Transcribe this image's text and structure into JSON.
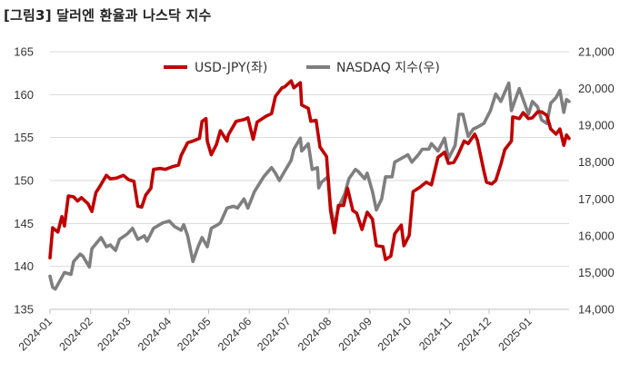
{
  "title": "[그림3]  달러엔 환율과 나스닥 지수",
  "colors": {
    "usdjpy": "#c00000",
    "nasdaq": "#7f7f7f",
    "grid": "#d9d9d9",
    "axis": "#bfbfbf"
  },
  "chart_data": {
    "type": "line",
    "title": "[그림3]  달러엔 환율과 나스닥 지수",
    "x_tick_labels": [
      "2024-01",
      "2024-02",
      "2024-03",
      "2024-04",
      "2024-05",
      "2024-06",
      "2024-07",
      "2024-08",
      "2024-09",
      "2024-10",
      "2024-11",
      "2024-12",
      "2025-01"
    ],
    "x_range": [
      "2024-01-01",
      "2025-01-31"
    ],
    "y_left": {
      "range": [
        135,
        165
      ],
      "ticks": [
        "135",
        "140",
        "145",
        "150",
        "155",
        "160",
        "165"
      ]
    },
    "y_right": {
      "range": [
        14000,
        21000
      ],
      "ticks": [
        "14,000",
        "15,000",
        "16,000",
        "17,000",
        "18,000",
        "19,000",
        "20,000",
        "21,000"
      ]
    },
    "legend": {
      "placement": "top-center",
      "entries": [
        "USD-JPY(좌)",
        "NASDAQ 지수(우)"
      ]
    },
    "grid": {
      "horizontal": true,
      "vertical": false
    },
    "series": [
      {
        "name": "USD-JPY(좌)",
        "axis": "left",
        "color": "#c00000",
        "points": [
          [
            "2024-01-01",
            141.0
          ],
          [
            "2024-01-03",
            144.5
          ],
          [
            "2024-01-07",
            144.0
          ],
          [
            "2024-01-10",
            145.8
          ],
          [
            "2024-01-12",
            144.7
          ],
          [
            "2024-01-15",
            148.2
          ],
          [
            "2024-01-19",
            148.1
          ],
          [
            "2024-01-22",
            147.6
          ],
          [
            "2024-01-25",
            148.0
          ],
          [
            "2024-01-30",
            147.3
          ],
          [
            "2024-02-02",
            146.4
          ],
          [
            "2024-02-05",
            148.6
          ],
          [
            "2024-02-08",
            149.3
          ],
          [
            "2024-02-13",
            150.6
          ],
          [
            "2024-02-16",
            150.2
          ],
          [
            "2024-02-21",
            150.3
          ],
          [
            "2024-02-26",
            150.6
          ],
          [
            "2024-03-01",
            150.1
          ],
          [
            "2024-03-05",
            149.9
          ],
          [
            "2024-03-08",
            147.0
          ],
          [
            "2024-03-11",
            146.9
          ],
          [
            "2024-03-14",
            148.3
          ],
          [
            "2024-03-18",
            149.1
          ],
          [
            "2024-03-20",
            151.3
          ],
          [
            "2024-03-25",
            151.4
          ],
          [
            "2024-03-29",
            151.3
          ],
          [
            "2024-04-03",
            151.6
          ],
          [
            "2024-04-08",
            151.8
          ],
          [
            "2024-04-10",
            152.9
          ],
          [
            "2024-04-15",
            154.4
          ],
          [
            "2024-04-19",
            154.6
          ],
          [
            "2024-04-24",
            154.9
          ],
          [
            "2024-04-26",
            156.9
          ],
          [
            "2024-04-29",
            157.2
          ],
          [
            "2024-04-30",
            154.6
          ],
          [
            "2024-05-03",
            153.0
          ],
          [
            "2024-05-07",
            154.2
          ],
          [
            "2024-05-10",
            155.8
          ],
          [
            "2024-05-15",
            154.6
          ],
          [
            "2024-05-16",
            155.3
          ],
          [
            "2024-05-22",
            156.9
          ],
          [
            "2024-05-28",
            157.1
          ],
          [
            "2024-05-31",
            157.3
          ],
          [
            "2024-06-04",
            154.8
          ],
          [
            "2024-06-07",
            156.8
          ],
          [
            "2024-06-11",
            157.2
          ],
          [
            "2024-06-14",
            157.5
          ],
          [
            "2024-06-18",
            157.8
          ],
          [
            "2024-06-21",
            159.8
          ],
          [
            "2024-06-26",
            160.8
          ],
          [
            "2024-06-28",
            160.9
          ],
          [
            "2024-07-03",
            161.6
          ],
          [
            "2024-07-05",
            160.8
          ],
          [
            "2024-07-10",
            161.4
          ],
          [
            "2024-07-11",
            158.8
          ],
          [
            "2024-07-16",
            158.4
          ],
          [
            "2024-07-18",
            156.9
          ],
          [
            "2024-07-22",
            157.0
          ],
          [
            "2024-07-25",
            153.9
          ],
          [
            "2024-07-30",
            152.8
          ],
          [
            "2024-08-02",
            146.5
          ],
          [
            "2024-08-05",
            143.9
          ],
          [
            "2024-08-08",
            147.1
          ],
          [
            "2024-08-12",
            147.1
          ],
          [
            "2024-08-15",
            149.1
          ],
          [
            "2024-08-19",
            146.5
          ],
          [
            "2024-08-22",
            146.2
          ],
          [
            "2024-08-26",
            144.3
          ],
          [
            "2024-08-30",
            146.3
          ],
          [
            "2024-09-03",
            145.5
          ],
          [
            "2024-09-06",
            142.4
          ],
          [
            "2024-09-11",
            142.3
          ],
          [
            "2024-09-13",
            140.8
          ],
          [
            "2024-09-17",
            141.2
          ],
          [
            "2024-09-20",
            143.8
          ],
          [
            "2024-09-25",
            144.8
          ],
          [
            "2024-09-27",
            142.4
          ],
          [
            "2024-10-01",
            143.6
          ],
          [
            "2024-10-04",
            148.7
          ],
          [
            "2024-10-09",
            149.2
          ],
          [
            "2024-10-14",
            149.8
          ],
          [
            "2024-10-18",
            149.5
          ],
          [
            "2024-10-23",
            152.7
          ],
          [
            "2024-10-28",
            153.3
          ],
          [
            "2024-10-31",
            152.0
          ],
          [
            "2024-11-04",
            152.1
          ],
          [
            "2024-11-07",
            152.9
          ],
          [
            "2024-11-12",
            154.6
          ],
          [
            "2024-11-15",
            154.3
          ],
          [
            "2024-11-20",
            155.4
          ],
          [
            "2024-11-22",
            154.7
          ],
          [
            "2024-11-27",
            151.1
          ],
          [
            "2024-11-29",
            149.8
          ],
          [
            "2024-12-03",
            149.6
          ],
          [
            "2024-12-06",
            150.0
          ],
          [
            "2024-12-10",
            151.9
          ],
          [
            "2024-12-13",
            153.6
          ],
          [
            "2024-12-18",
            154.6
          ],
          [
            "2024-12-19",
            157.4
          ],
          [
            "2024-12-24",
            157.2
          ],
          [
            "2024-12-27",
            157.9
          ],
          [
            "2024-12-31",
            157.2
          ],
          [
            "2025-01-03",
            157.3
          ],
          [
            "2025-01-07",
            158.0
          ],
          [
            "2025-01-10",
            158.0
          ],
          [
            "2025-01-14",
            157.6
          ],
          [
            "2025-01-17",
            156.0
          ],
          [
            "2025-01-21",
            155.4
          ],
          [
            "2025-01-24",
            156.0
          ],
          [
            "2025-01-27",
            154.1
          ],
          [
            "2025-01-29",
            155.3
          ],
          [
            "2025-01-31",
            154.9
          ]
        ]
      },
      {
        "name": "NASDAQ 지수(우)",
        "axis": "right",
        "color": "#7f7f7f",
        "points": [
          [
            "2024-01-01",
            14900
          ],
          [
            "2024-01-03",
            14600
          ],
          [
            "2024-01-05",
            14550
          ],
          [
            "2024-01-09",
            14800
          ],
          [
            "2024-01-12",
            15000
          ],
          [
            "2024-01-17",
            14950
          ],
          [
            "2024-01-19",
            15300
          ],
          [
            "2024-01-24",
            15500
          ],
          [
            "2024-01-26",
            15450
          ],
          [
            "2024-01-31",
            15150
          ],
          [
            "2024-02-02",
            15650
          ],
          [
            "2024-02-09",
            15950
          ],
          [
            "2024-02-13",
            15700
          ],
          [
            "2024-02-16",
            15750
          ],
          [
            "2024-02-20",
            15600
          ],
          [
            "2024-02-23",
            15900
          ],
          [
            "2024-02-29",
            16050
          ],
          [
            "2024-03-04",
            16200
          ],
          [
            "2024-03-08",
            15900
          ],
          [
            "2024-03-13",
            16000
          ],
          [
            "2024-03-15",
            15850
          ],
          [
            "2024-03-20",
            16200
          ],
          [
            "2024-03-27",
            16350
          ],
          [
            "2024-04-01",
            16400
          ],
          [
            "2024-04-05",
            16250
          ],
          [
            "2024-04-10",
            16150
          ],
          [
            "2024-04-12",
            16300
          ],
          [
            "2024-04-15",
            16000
          ],
          [
            "2024-04-19",
            15300
          ],
          [
            "2024-04-23",
            15700
          ],
          [
            "2024-04-26",
            15950
          ],
          [
            "2024-04-30",
            15700
          ],
          [
            "2024-05-03",
            16200
          ],
          [
            "2024-05-08",
            16300
          ],
          [
            "2024-05-10",
            16350
          ],
          [
            "2024-05-15",
            16750
          ],
          [
            "2024-05-20",
            16800
          ],
          [
            "2024-05-23",
            16750
          ],
          [
            "2024-05-28",
            17000
          ],
          [
            "2024-05-31",
            16750
          ],
          [
            "2024-06-05",
            17200
          ],
          [
            "2024-06-12",
            17600
          ],
          [
            "2024-06-18",
            17850
          ],
          [
            "2024-06-21",
            17700
          ],
          [
            "2024-06-24",
            17500
          ],
          [
            "2024-06-28",
            17750
          ],
          [
            "2024-07-03",
            18050
          ],
          [
            "2024-07-05",
            18350
          ],
          [
            "2024-07-10",
            18650
          ],
          [
            "2024-07-11",
            18300
          ],
          [
            "2024-07-16",
            18500
          ],
          [
            "2024-07-19",
            17800
          ],
          [
            "2024-07-23",
            17850
          ],
          [
            "2024-07-24",
            17300
          ],
          [
            "2024-07-26",
            17450
          ],
          [
            "2024-07-31",
            17600
          ],
          [
            "2024-08-02",
            16800
          ],
          [
            "2024-08-05",
            16250
          ],
          [
            "2024-08-08",
            16750
          ],
          [
            "2024-08-13",
            17150
          ],
          [
            "2024-08-16",
            17550
          ],
          [
            "2024-08-21",
            17800
          ],
          [
            "2024-08-23",
            17750
          ],
          [
            "2024-08-28",
            17550
          ],
          [
            "2024-08-30",
            17700
          ],
          [
            "2024-09-03",
            17200
          ],
          [
            "2024-09-06",
            16700
          ],
          [
            "2024-09-10",
            17000
          ],
          [
            "2024-09-13",
            17600
          ],
          [
            "2024-09-18",
            17600
          ],
          [
            "2024-09-20",
            18000
          ],
          [
            "2024-09-25",
            18100
          ],
          [
            "2024-09-30",
            18200
          ],
          [
            "2024-10-03",
            18000
          ],
          [
            "2024-10-08",
            18200
          ],
          [
            "2024-10-11",
            18350
          ],
          [
            "2024-10-16",
            18350
          ],
          [
            "2024-10-18",
            18500
          ],
          [
            "2024-10-23",
            18300
          ],
          [
            "2024-10-28",
            18650
          ],
          [
            "2024-10-31",
            18100
          ],
          [
            "2024-11-05",
            18450
          ],
          [
            "2024-11-08",
            19300
          ],
          [
            "2024-11-11",
            19300
          ],
          [
            "2024-11-15",
            18700
          ],
          [
            "2024-11-19",
            18900
          ],
          [
            "2024-11-22",
            18950
          ],
          [
            "2024-11-27",
            19050
          ],
          [
            "2024-12-02",
            19400
          ],
          [
            "2024-12-06",
            19850
          ],
          [
            "2024-12-10",
            19650
          ],
          [
            "2024-12-13",
            19900
          ],
          [
            "2024-12-16",
            20150
          ],
          [
            "2024-12-18",
            19400
          ],
          [
            "2024-12-20",
            19600
          ],
          [
            "2024-12-24",
            20000
          ],
          [
            "2024-12-27",
            19700
          ],
          [
            "2024-12-31",
            19300
          ],
          [
            "2025-01-03",
            19650
          ],
          [
            "2025-01-07",
            19500
          ],
          [
            "2025-01-10",
            19150
          ],
          [
            "2025-01-14",
            19050
          ],
          [
            "2025-01-17",
            19600
          ],
          [
            "2025-01-21",
            19750
          ],
          [
            "2025-01-24",
            19950
          ],
          [
            "2025-01-27",
            19350
          ],
          [
            "2025-01-29",
            19700
          ],
          [
            "2025-01-31",
            19650
          ]
        ]
      }
    ]
  }
}
